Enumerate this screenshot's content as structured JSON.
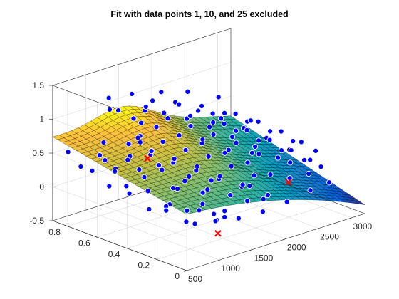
{
  "chart_data": {
    "type": "surface",
    "title": "Fit with data points 1, 10, and 25 excluded",
    "xlabel": "",
    "ylabel": "",
    "zlabel": "",
    "xlim": [
      500,
      3200
    ],
    "ylim": [
      0,
      0.9
    ],
    "zlim": [
      -0.5,
      1.5
    ],
    "xticks": [
      "500",
      "1000",
      "1500",
      "2000",
      "2500",
      "3000"
    ],
    "yticks": [
      "0",
      "0.2",
      "0.4",
      "0.6",
      "0.8"
    ],
    "zticks": [
      "-0.5",
      "0",
      "0.5",
      "1",
      "1.5"
    ],
    "grid": true,
    "colormap": "parula",
    "colors": {
      "points": "#0000ff",
      "excluded": "#ff0000",
      "mesh": "#000000"
    },
    "surface_fit": {
      "description_values_in_data_units": true,
      "x_range": [
        500,
        3200
      ],
      "y_range": [
        0,
        0.9
      ],
      "grid_n": [
        28,
        28
      ]
    },
    "points": [
      [
        620,
        0.85,
        0.52
      ],
      [
        700,
        0.8,
        0.32
      ],
      [
        760,
        0.7,
        0.55
      ],
      [
        820,
        0.62,
        0.4
      ],
      [
        880,
        0.55,
        0.62
      ],
      [
        940,
        0.48,
        0.35
      ],
      [
        980,
        0.4,
        0.58
      ],
      [
        1040,
        0.33,
        0.28
      ],
      [
        1100,
        0.25,
        0.5
      ],
      [
        1150,
        0.18,
        0.3
      ],
      [
        680,
        0.6,
        0.2
      ],
      [
        760,
        0.5,
        0.15
      ],
      [
        860,
        0.42,
        0.22
      ],
      [
        920,
        0.3,
        0.1
      ],
      [
        1000,
        0.22,
        0.05
      ],
      [
        1080,
        0.15,
        0.18
      ],
      [
        1140,
        0.08,
        -0.02
      ],
      [
        720,
        0.35,
        0.05
      ],
      [
        820,
        0.28,
        0.12
      ],
      [
        900,
        0.18,
        -0.05
      ],
      [
        960,
        0.12,
        0.15
      ],
      [
        1050,
        0.05,
        0.02
      ],
      [
        1120,
        0.02,
        0.08
      ],
      [
        760,
        0.75,
        0.28
      ],
      [
        840,
        0.7,
        0.45
      ],
      [
        900,
        0.66,
        0.3
      ],
      [
        960,
        0.6,
        0.5
      ],
      [
        1020,
        0.55,
        0.38
      ],
      [
        1080,
        0.5,
        0.62
      ],
      [
        1140,
        0.45,
        0.42
      ],
      [
        1200,
        0.4,
        0.55
      ],
      [
        1260,
        0.35,
        0.3
      ],
      [
        1320,
        0.3,
        0.48
      ],
      [
        1380,
        0.25,
        0.22
      ],
      [
        1440,
        0.2,
        0.4
      ],
      [
        1500,
        0.15,
        0.18
      ],
      [
        1560,
        0.1,
        0.33
      ],
      [
        1200,
        0.7,
        0.58
      ],
      [
        1260,
        0.65,
        0.72
      ],
      [
        1320,
        0.6,
        0.52
      ],
      [
        1380,
        0.55,
        0.68
      ],
      [
        1440,
        0.5,
        0.45
      ],
      [
        1500,
        0.45,
        0.6
      ],
      [
        1560,
        0.4,
        0.38
      ],
      [
        1620,
        0.35,
        0.55
      ],
      [
        1680,
        0.3,
        0.28
      ],
      [
        1740,
        0.25,
        0.45
      ],
      [
        1800,
        0.2,
        0.2
      ],
      [
        1860,
        0.15,
        0.36
      ],
      [
        1500,
        0.8,
        0.78
      ],
      [
        1560,
        0.75,
        0.92
      ],
      [
        1620,
        0.7,
        0.7
      ],
      [
        1680,
        0.65,
        0.85
      ],
      [
        1740,
        0.6,
        0.62
      ],
      [
        1800,
        0.55,
        0.78
      ],
      [
        1860,
        0.5,
        0.55
      ],
      [
        1920,
        0.45,
        0.7
      ],
      [
        1980,
        0.4,
        0.45
      ],
      [
        2040,
        0.35,
        0.62
      ],
      [
        2100,
        0.3,
        0.35
      ],
      [
        2160,
        0.25,
        0.5
      ],
      [
        2220,
        0.2,
        0.22
      ],
      [
        1900,
        0.85,
        0.88
      ],
      [
        1960,
        0.8,
        0.72
      ],
      [
        2020,
        0.75,
        0.9
      ],
      [
        2080,
        0.7,
        0.68
      ],
      [
        2140,
        0.65,
        0.82
      ],
      [
        2200,
        0.6,
        0.6
      ],
      [
        2260,
        0.55,
        0.75
      ],
      [
        2320,
        0.5,
        0.5
      ],
      [
        2380,
        0.45,
        0.65
      ],
      [
        2440,
        0.4,
        0.4
      ],
      [
        2500,
        0.35,
        0.55
      ],
      [
        2560,
        0.3,
        0.28
      ],
      [
        2620,
        0.25,
        0.42
      ],
      [
        2300,
        0.85,
        0.7
      ],
      [
        2360,
        0.8,
        0.55
      ],
      [
        2420,
        0.75,
        0.72
      ],
      [
        2480,
        0.7,
        0.5
      ],
      [
        2540,
        0.65,
        0.66
      ],
      [
        2600,
        0.6,
        0.42
      ],
      [
        2660,
        0.55,
        0.58
      ],
      [
        2720,
        0.5,
        0.32
      ],
      [
        2780,
        0.45,
        0.48
      ],
      [
        2840,
        0.4,
        0.22
      ],
      [
        2900,
        0.35,
        0.38
      ],
      [
        2960,
        0.3,
        0.12
      ],
      [
        3020,
        0.25,
        0.28
      ],
      [
        2700,
        0.8,
        0.48
      ],
      [
        2760,
        0.75,
        0.35
      ],
      [
        2820,
        0.7,
        0.52
      ],
      [
        2880,
        0.65,
        0.3
      ],
      [
        2940,
        0.6,
        0.45
      ],
      [
        3000,
        0.55,
        0.2
      ],
      [
        3060,
        0.5,
        0.35
      ],
      [
        3100,
        0.45,
        0.1
      ],
      [
        3140,
        0.4,
        0.25
      ],
      [
        3160,
        0.35,
        0.02
      ],
      [
        1300,
        0.1,
        0.05
      ],
      [
        1400,
        0.05,
        -0.05
      ],
      [
        1600,
        0.08,
        0.12
      ],
      [
        1700,
        0.02,
        -0.02
      ],
      [
        1800,
        0.06,
        0.1
      ],
      [
        2000,
        0.12,
        0.05
      ],
      [
        2200,
        0.08,
        -0.08
      ],
      [
        2400,
        0.15,
        0.15
      ],
      [
        2600,
        0.1,
        -0.05
      ],
      [
        2800,
        0.2,
        0.05
      ],
      [
        3000,
        0.15,
        -0.1
      ],
      [
        3100,
        0.25,
        0.02
      ],
      [
        1250,
        0.85,
        0.95
      ],
      [
        1350,
        0.9,
        1.05
      ],
      [
        1450,
        0.88,
        0.85
      ],
      [
        1700,
        0.9,
        1.0
      ],
      [
        1800,
        0.85,
        0.82
      ],
      [
        2100,
        0.88,
        0.92
      ],
      [
        2500,
        0.88,
        0.8
      ],
      [
        2900,
        0.85,
        0.62
      ],
      [
        640,
        0.2,
        0.18
      ],
      [
        600,
        0.45,
        0.35
      ],
      [
        1000,
        0.78,
        0.6
      ],
      [
        1160,
        0.62,
        0.75
      ],
      [
        1420,
        0.72,
        0.52
      ],
      [
        1660,
        0.82,
        0.65
      ],
      [
        2050,
        0.58,
        0.48
      ],
      [
        2350,
        0.38,
        0.35
      ],
      [
        2700,
        0.28,
        0.18
      ],
      [
        3050,
        0.7,
        0.35
      ],
      [
        1950,
        0.22,
        0.12
      ],
      [
        1550,
        0.3,
        0.26
      ],
      [
        1150,
        0.35,
        0.22
      ],
      [
        850,
        0.1,
        0.0
      ],
      [
        1250,
        0.15,
        -0.02
      ],
      [
        2150,
        0.45,
        0.4
      ]
    ],
    "excluded_points": [
      [
        1080,
        0.52,
        0.55
      ],
      [
        1200,
        0.1,
        -0.25
      ],
      [
        2450,
        0.18,
        0.05
      ]
    ]
  }
}
